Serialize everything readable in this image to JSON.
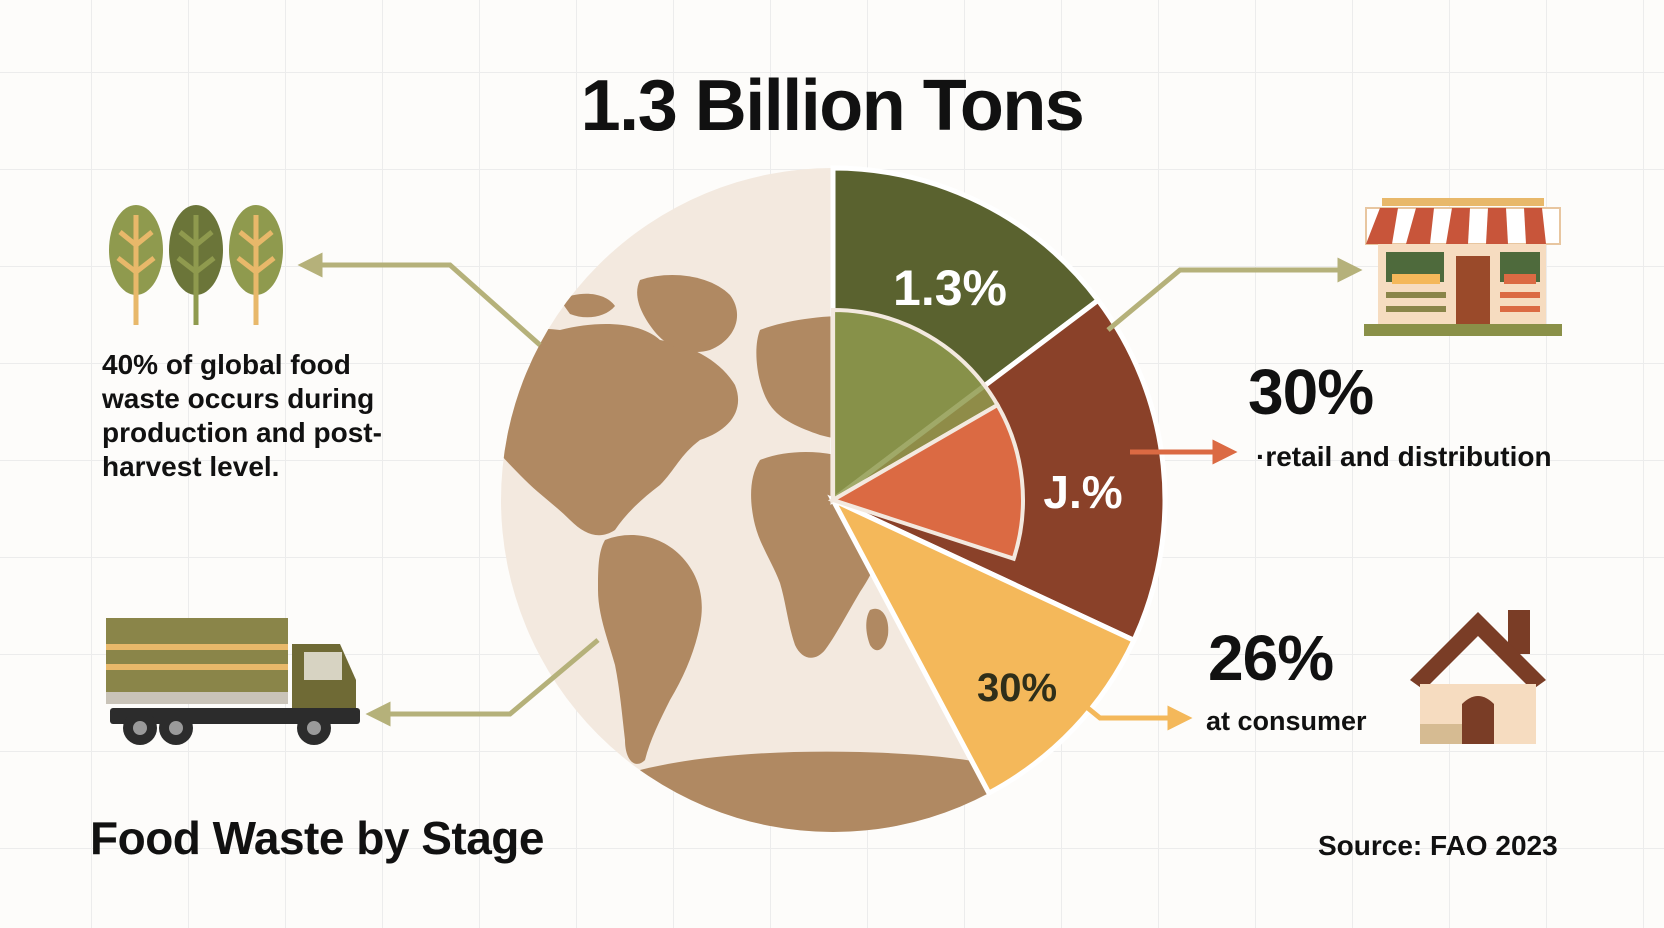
{
  "header": {
    "title": "1.3 Billion Tons"
  },
  "annotations": {
    "production_note": "40% of global food waste occurs during production and post-harvest level.",
    "retail_percent": "30%",
    "retail_label": "·retail and distribution",
    "consumer_percent": "26%",
    "consumer_label": "at consumer"
  },
  "footer": {
    "title": "Food Waste by Stage",
    "source": "Source: FAO 2023"
  },
  "icons": [
    "tree-icon",
    "truck-icon",
    "storefront-icon",
    "house-icon",
    "world-map-icon"
  ],
  "colors": {
    "production": "#5a622f",
    "retail": "#8a4129",
    "consumer": "#f4b85a",
    "processing": "#db6a43",
    "inner": "#8f9a4e",
    "map_land": "#b08962",
    "map_sea": "#f3e9df",
    "arrow": "#b5b17a"
  },
  "chart_data": {
    "type": "pie",
    "title": "1.3 Billion Tons",
    "slices": [
      {
        "label": "1.3%",
        "start_deg": 0,
        "end_deg": 53,
        "color": "#5a622f"
      },
      {
        "label": "J.%",
        "start_deg": 53,
        "end_deg": 115,
        "color": "#8a4129"
      },
      {
        "label": "30%",
        "start_deg": 115,
        "end_deg": 152,
        "color": "#f4b85a"
      }
    ],
    "inner_ring": [
      {
        "start_deg": 0,
        "end_deg": 60,
        "color": "#8f9a4e"
      },
      {
        "start_deg": 60,
        "end_deg": 108,
        "color": "#db6a43"
      }
    ],
    "callouts": [
      {
        "value": "30%",
        "label": "·retail and distribution"
      },
      {
        "value": "26%",
        "label": "at consumer"
      }
    ],
    "source": "Source: FAO 2023"
  }
}
